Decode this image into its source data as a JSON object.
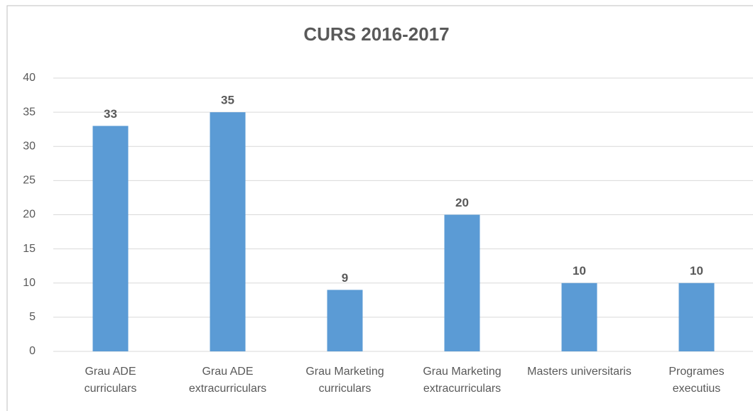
{
  "chart_data": {
    "type": "bar",
    "title": "CURS 2016-2017",
    "categories": [
      "Grau ADE curriculars",
      "Grau ADE extracurriculars",
      "Grau Marketing curriculars",
      "Grau Marketing extracurriculars",
      "Masters universitaris",
      "Programes executius"
    ],
    "values": [
      33,
      35,
      9,
      20,
      10,
      10
    ],
    "color": "#5b9bd5",
    "ylim": [
      0,
      40
    ],
    "yticks": [
      0,
      5,
      10,
      15,
      20,
      25,
      30,
      35,
      40
    ],
    "grid": true
  }
}
